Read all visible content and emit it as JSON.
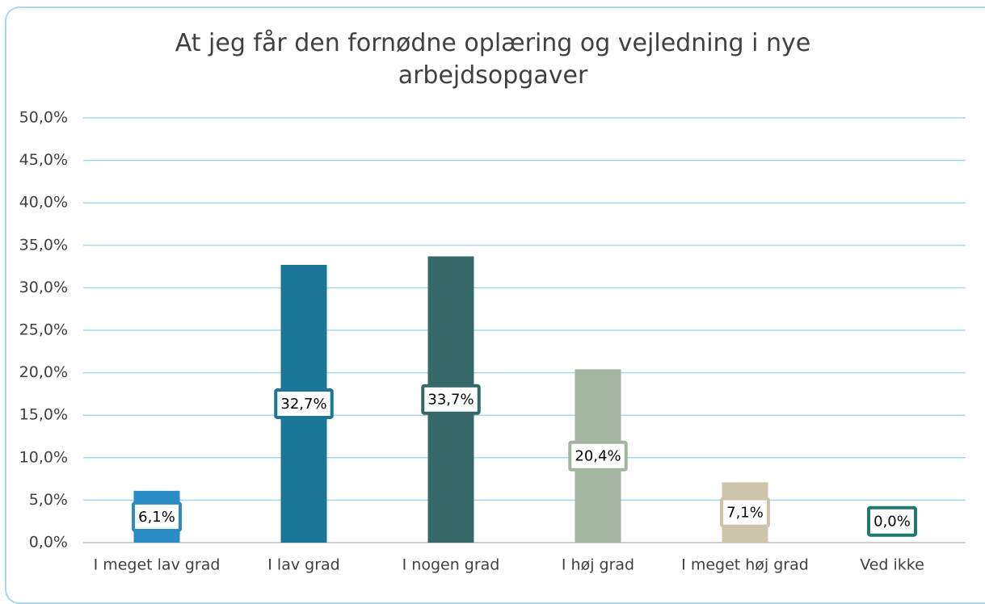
{
  "chart_data": {
    "type": "bar",
    "title": "At jeg får den fornødne oplæring og vejledning i nye arbejdsopgaver",
    "categories": [
      "I meget lav grad",
      "I lav grad",
      "I nogen grad",
      "I høj grad",
      "I meget høj grad",
      "Ved ikke"
    ],
    "values": [
      6.1,
      32.7,
      33.7,
      20.4,
      7.1,
      0.0
    ],
    "value_labels": [
      "6,1%",
      "32,7%",
      "33,7%",
      "20,4%",
      "7,1%",
      "0,0%"
    ],
    "colors": [
      "#2a8cc4",
      "#1a7596",
      "#376868",
      "#a3b4a0",
      "#cdc5ab",
      "#1f7a6e"
    ],
    "ylim": [
      0,
      50
    ],
    "yticks": [
      {
        "value": 0,
        "label": "0,0%"
      },
      {
        "value": 5,
        "label": "5,0%"
      },
      {
        "value": 10,
        "label": "10,0%"
      },
      {
        "value": 15,
        "label": "15,0%"
      },
      {
        "value": 20,
        "label": "20,0%"
      },
      {
        "value": 25,
        "label": "25,0%"
      },
      {
        "value": 30,
        "label": "30,0%"
      },
      {
        "value": 35,
        "label": "35,0%"
      },
      {
        "value": 40,
        "label": "40,0%"
      },
      {
        "value": 45,
        "label": "45,0%"
      },
      {
        "value": 50,
        "label": "50,0%"
      }
    ],
    "grid": true
  }
}
